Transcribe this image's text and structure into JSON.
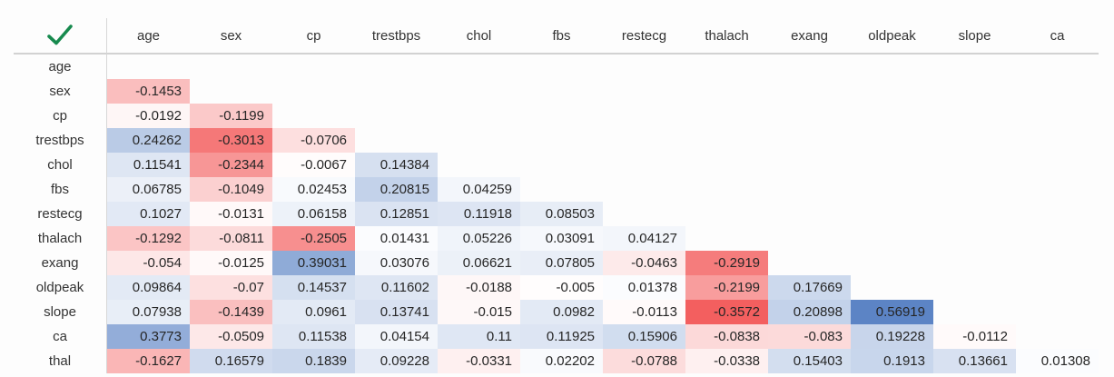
{
  "header": {
    "corner_icon": "check",
    "columns": [
      "age",
      "sex",
      "cp",
      "trestbps",
      "chol",
      "fbs",
      "restecg",
      "thalach",
      "exang",
      "oldpeak",
      "slope",
      "ca"
    ]
  },
  "rows": [
    {
      "label": "age",
      "values": []
    },
    {
      "label": "sex",
      "values": [
        "-0.1453"
      ]
    },
    {
      "label": "cp",
      "values": [
        "-0.0192",
        "-0.1199"
      ]
    },
    {
      "label": "trestbps",
      "values": [
        "0.24262",
        "-0.3013",
        "-0.0706"
      ]
    },
    {
      "label": "chol",
      "values": [
        "0.11541",
        "-0.2344",
        "-0.0067",
        "0.14384"
      ]
    },
    {
      "label": "fbs",
      "values": [
        "0.06785",
        "-0.1049",
        "0.02453",
        "0.20815",
        "0.04259"
      ]
    },
    {
      "label": "restecg",
      "values": [
        "0.1027",
        "-0.0131",
        "0.06158",
        "0.12851",
        "0.11918",
        "0.08503"
      ]
    },
    {
      "label": "thalach",
      "values": [
        "-0.1292",
        "-0.0811",
        "-0.2505",
        "0.01431",
        "0.05226",
        "0.03091",
        "0.04127"
      ]
    },
    {
      "label": "exang",
      "values": [
        "-0.054",
        "-0.0125",
        "0.39031",
        "0.03076",
        "0.06621",
        "0.07805",
        "-0.0463",
        "-0.2919"
      ]
    },
    {
      "label": "oldpeak",
      "values": [
        "0.09864",
        "-0.07",
        "0.14537",
        "0.11602",
        "-0.0188",
        "-0.005",
        "0.01378",
        "-0.2199",
        "0.17669"
      ]
    },
    {
      "label": "slope",
      "values": [
        "0.07938",
        "-0.1439",
        "0.0961",
        "0.13741",
        "-0.015",
        "0.0982",
        "-0.0113",
        "-0.3572",
        "0.20898",
        "0.56919"
      ]
    },
    {
      "label": "ca",
      "values": [
        "0.3773",
        "-0.0509",
        "0.11538",
        "0.04154",
        "0.11",
        "0.11925",
        "0.15906",
        "-0.0838",
        "-0.083",
        "0.19228",
        "-0.0112"
      ]
    },
    {
      "label": "thal",
      "values": [
        "-0.1627",
        "0.16579",
        "0.1839",
        "0.09228",
        "-0.0331",
        "0.02202",
        "-0.0788",
        "-0.0338",
        "0.15403",
        "0.1913",
        "0.13661",
        "0.01308"
      ]
    }
  ],
  "colors": {
    "positive_max": "#5c84c5",
    "negative_max": "#f35f5f",
    "neutral": "#ffffff",
    "check": "#178a4e",
    "grid_line": "#d2d2d2",
    "text": "#262626"
  },
  "chart_data": {
    "type": "heatmap",
    "title": "",
    "x_labels": [
      "age",
      "sex",
      "cp",
      "trestbps",
      "chol",
      "fbs",
      "restecg",
      "thalach",
      "exang",
      "oldpeak",
      "slope",
      "ca"
    ],
    "y_labels": [
      "age",
      "sex",
      "cp",
      "trestbps",
      "chol",
      "fbs",
      "restecg",
      "thalach",
      "exang",
      "oldpeak",
      "slope",
      "ca",
      "thal"
    ],
    "values": [
      [
        null,
        null,
        null,
        null,
        null,
        null,
        null,
        null,
        null,
        null,
        null,
        null
      ],
      [
        -0.1453,
        null,
        null,
        null,
        null,
        null,
        null,
        null,
        null,
        null,
        null,
        null
      ],
      [
        -0.0192,
        -0.1199,
        null,
        null,
        null,
        null,
        null,
        null,
        null,
        null,
        null,
        null
      ],
      [
        0.24262,
        -0.3013,
        -0.0706,
        null,
        null,
        null,
        null,
        null,
        null,
        null,
        null,
        null
      ],
      [
        0.11541,
        -0.2344,
        -0.0067,
        0.14384,
        null,
        null,
        null,
        null,
        null,
        null,
        null,
        null
      ],
      [
        0.06785,
        -0.1049,
        0.02453,
        0.20815,
        0.04259,
        null,
        null,
        null,
        null,
        null,
        null,
        null
      ],
      [
        0.1027,
        -0.0131,
        0.06158,
        0.12851,
        0.11918,
        0.08503,
        null,
        null,
        null,
        null,
        null,
        null
      ],
      [
        -0.1292,
        -0.0811,
        -0.2505,
        0.01431,
        0.05226,
        0.03091,
        0.04127,
        null,
        null,
        null,
        null,
        null
      ],
      [
        -0.054,
        -0.0125,
        0.39031,
        0.03076,
        0.06621,
        0.07805,
        -0.0463,
        -0.2919,
        null,
        null,
        null,
        null
      ],
      [
        0.09864,
        -0.07,
        0.14537,
        0.11602,
        -0.0188,
        -0.005,
        0.01378,
        -0.2199,
        0.17669,
        null,
        null,
        null
      ],
      [
        0.07938,
        -0.1439,
        0.0961,
        0.13741,
        -0.015,
        0.0982,
        -0.0113,
        -0.3572,
        0.20898,
        0.56919,
        null,
        null
      ],
      [
        0.3773,
        -0.0509,
        0.11538,
        0.04154,
        0.11,
        0.11925,
        0.15906,
        -0.0838,
        -0.083,
        0.19228,
        -0.0112,
        null
      ],
      [
        -0.1627,
        0.16579,
        0.1839,
        0.09228,
        -0.0331,
        0.02202,
        -0.0788,
        -0.0338,
        0.15403,
        0.1913,
        0.13661,
        0.01308
      ]
    ],
    "colormap": "red-white-blue",
    "color_midpoint": 0,
    "vmin": -0.3572,
    "vmax": 0.56919,
    "legend": "none",
    "grid": false
  }
}
